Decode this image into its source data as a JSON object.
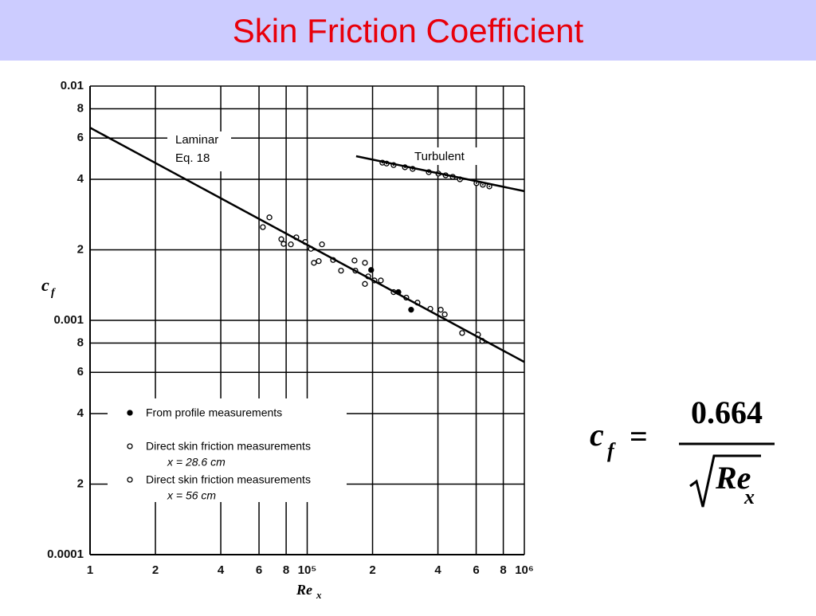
{
  "chart_data": {
    "type": "scatter",
    "title": "Skin Friction Coefficient",
    "xlabel": "Re",
    "xlabel_sub": "x",
    "ylabel": "c",
    "ylabel_sub": "f",
    "xscale": "log",
    "yscale": "log",
    "grid": true,
    "legend": "lower left",
    "xlim": [
      10000,
      1000000
    ],
    "xticks": [
      {
        "value": 10000,
        "label": "1"
      },
      {
        "value": 20000,
        "label": "2"
      },
      {
        "value": 40000,
        "label": "4"
      },
      {
        "value": 60000,
        "label": "6"
      },
      {
        "value": 80000,
        "label": "8"
      },
      {
        "value": 100000,
        "label": "10⁵"
      },
      {
        "value": 200000,
        "label": "2"
      },
      {
        "value": 400000,
        "label": "4"
      },
      {
        "value": 600000,
        "label": "6"
      },
      {
        "value": 800000,
        "label": "8"
      },
      {
        "value": 1000000,
        "label": "10⁶"
      }
    ],
    "ylim": [
      0.0001,
      0.01
    ],
    "yticks": [
      0.0001,
      {
        "value": 0.0002,
        "label": "2"
      },
      {
        "value": 0.0004,
        "label": "4"
      },
      {
        "value": 0.0006,
        "label": "6"
      },
      {
        "value": 0.0008,
        "label": "8"
      },
      0.001,
      {
        "value": 0.002,
        "label": "2"
      },
      {
        "value": 0.004,
        "label": "4"
      },
      {
        "value": 0.006,
        "label": "6"
      },
      {
        "value": 0.008,
        "label": "8"
      },
      0.01
    ],
    "annotations": [
      "Laminar",
      "Eq. 18",
      "Turbulent"
    ],
    "series": [
      {
        "name": "From profile measurements",
        "marker": "filled",
        "color": "#000000",
        "x": [
          197000,
          301000,
          263000
        ],
        "values": [
          0.00164,
          0.00111,
          0.00132
        ]
      },
      {
        "name": "Direct skin friction measurements",
        "note": "x = 28.6 cm",
        "marker": "open",
        "color": "#000000",
        "x": [
          62500,
          66980,
          76000,
          77900,
          84100,
          89100,
          97900,
          104000,
          107400,
          113000,
          117000,
          131600,
          143200,
          165200,
          166700,
          184500,
          184500,
          191000,
          204000,
          218300,
          250000,
          286000,
          322000,
          369000,
          412000,
          430000,
          517000,
          612000,
          640000
        ],
        "values": [
          0.0025,
          0.00275,
          0.00222,
          0.00212,
          0.00211,
          0.00226,
          0.00216,
          0.00202,
          0.00176,
          0.00179,
          0.00211,
          0.00181,
          0.00163,
          0.0018,
          0.00163,
          0.00176,
          0.00143,
          0.00154,
          0.00148,
          0.00148,
          0.00132,
          0.00125,
          0.00119,
          0.00112,
          0.00111,
          0.00106,
          0.000883,
          0.000869,
          0.000817
        ]
      },
      {
        "name": "Direct skin friction measurements",
        "note": "x = 56 cm",
        "marker": "dotted",
        "color": "#000000",
        "x": [
          222000,
          232000,
          250000,
          282000,
          306000,
          363000,
          402000,
          434000,
          468000,
          505000,
          602000,
          644000,
          690000
        ],
        "values": [
          0.00471,
          0.00467,
          0.0046,
          0.0045,
          0.00443,
          0.00429,
          0.00423,
          0.00416,
          0.0041,
          0.004,
          0.00385,
          0.00379,
          0.00373
        ]
      },
      {
        "kind": "line",
        "color": "#000000",
        "x": [
          10000,
          1000000
        ],
        "values": [
          0.00664,
          0.000664
        ]
      },
      {
        "kind": "line",
        "color": "#000000",
        "x": [
          168000,
          1000000
        ],
        "values": [
          0.00502,
          0.00356
        ]
      }
    ],
    "formula": {
      "lhs": "c",
      "lhs_sub": "f",
      "equals": "=",
      "numerator": "0.664",
      "denominator": "Re",
      "denominator_sub": "x"
    }
  }
}
